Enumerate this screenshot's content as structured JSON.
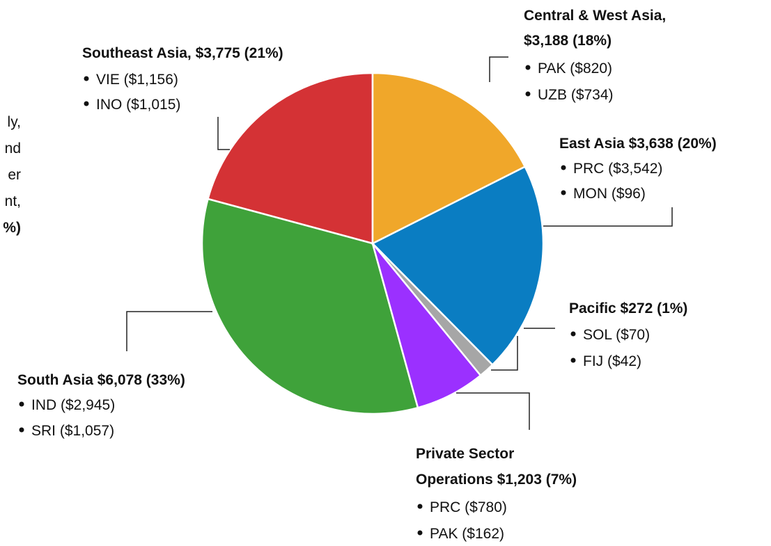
{
  "chart_data": {
    "type": "pie",
    "categories": [
      "Central & West Asia",
      "East Asia",
      "Pacific",
      "Private Sector Operations",
      "South Asia",
      "Southeast Asia"
    ],
    "values": [
      3188,
      3638,
      272,
      1203,
      6078,
      3775
    ],
    "colors": [
      "#f0a72a",
      "#0a7dc2",
      "#a6a6a6",
      "#9b30ff",
      "#3fa23a",
      "#d43235"
    ],
    "labels": [
      [
        "Central & West Asia,",
        "$3,188  (18%)"
      ],
      [
        "East Asia $3,638  (20%)"
      ],
      [
        "Pacific $272  (1%)"
      ],
      [
        "Private Sector",
        "Operations $1,203 (7%)"
      ],
      [
        "South Asia $6,078 (33%)"
      ],
      [
        "Southeast Asia, $3,775 (21%)"
      ]
    ],
    "details": [
      [
        "PAK ($820)",
        "UZB ($734)"
      ],
      [
        "PRC ($3,542)",
        "MON ($96)"
      ],
      [
        "SOL ($70)",
        "FIJ ($42)"
      ],
      [
        "PRC ($780)",
        "PAK ($162)"
      ],
      [
        "IND ($2,945)",
        "SRI ($1,057)"
      ],
      [
        "VIE ($1,156)",
        "INO ($1,015)"
      ]
    ],
    "cropped_text": [
      "ly,",
      "nd",
      "er",
      "nt,",
      "%)"
    ]
  }
}
